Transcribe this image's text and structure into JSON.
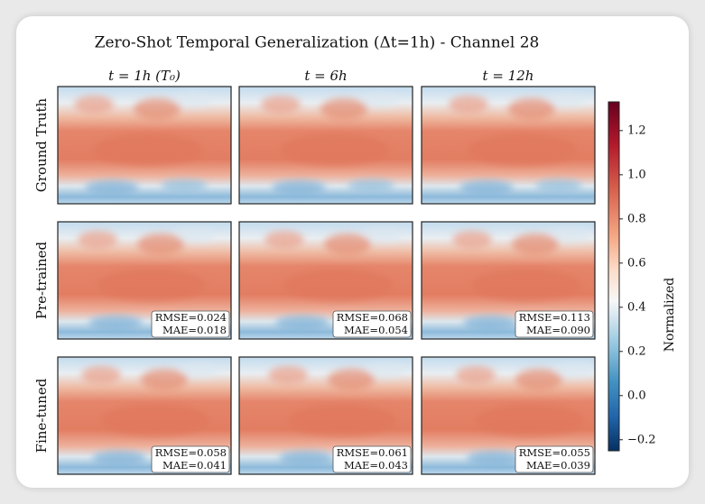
{
  "chart_data": {
    "type": "heatmap-grid",
    "title": "Zero-Shot Temporal Generalization (Δt=1h) - Channel 28",
    "columns": [
      "t = 1h (T₀)",
      "t = 6h",
      "t = 12h"
    ],
    "rows": [
      "Ground Truth",
      "Pre-trained",
      "Fine-tuned"
    ],
    "metrics": [
      [
        null,
        null,
        null
      ],
      [
        [
          "RMSE=0.024",
          "MAE=0.018"
        ],
        [
          "RMSE=0.068",
          "MAE=0.054"
        ],
        [
          "RMSE=0.113",
          "MAE=0.090"
        ]
      ],
      [
        [
          "RMSE=0.058",
          "MAE=0.041"
        ],
        [
          "RMSE=0.061",
          "MAE=0.043"
        ],
        [
          "RMSE=0.055",
          "MAE=0.039"
        ]
      ]
    ],
    "colorbar": {
      "label": "Normalized",
      "lim": [
        -0.25,
        1.33
      ],
      "ticks": [
        {
          "value": -0.2,
          "label": "−0.2"
        },
        {
          "value": 0,
          "label": "0.0"
        },
        0.2,
        0.4,
        0.6,
        0.8,
        {
          "value": 1,
          "label": "1.0"
        },
        1.2
      ]
    }
  }
}
